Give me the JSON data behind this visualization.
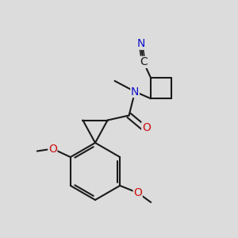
{
  "bg_color": "#dcdcdc",
  "bond_color": "#1a1a1a",
  "bond_width": 1.5,
  "atom_colors": {
    "C_label": "#1a1a1a",
    "N": "#1010cc",
    "O": "#cc1010",
    "CN_N": "#1010cc"
  },
  "font_size_atom": 10,
  "font_size_small": 9
}
